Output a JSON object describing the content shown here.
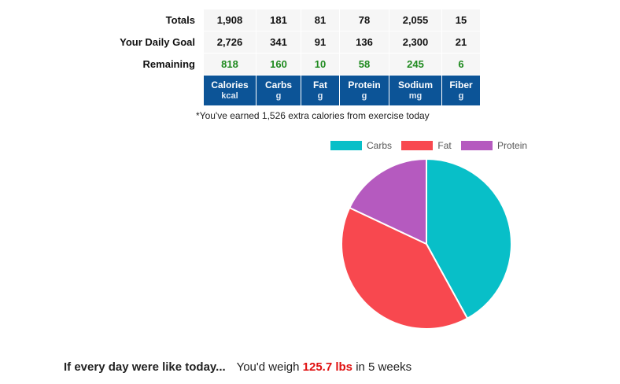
{
  "table": {
    "rows": [
      {
        "label": "Totals",
        "values": [
          "1,908",
          "181",
          "81",
          "78",
          "2,055",
          "15"
        ]
      },
      {
        "label": "Your Daily Goal",
        "values": [
          "2,726",
          "341",
          "91",
          "136",
          "2,300",
          "21"
        ]
      },
      {
        "label": "Remaining",
        "values": [
          "818",
          "160",
          "10",
          "58",
          "245",
          "6"
        ]
      }
    ],
    "headers": [
      {
        "name": "Calories",
        "unit": "kcal"
      },
      {
        "name": "Carbs",
        "unit": "g"
      },
      {
        "name": "Fat",
        "unit": "g"
      },
      {
        "name": "Protein",
        "unit": "g"
      },
      {
        "name": "Sodium",
        "unit": "mg"
      },
      {
        "name": "Fiber",
        "unit": "g"
      }
    ]
  },
  "exercise_note": "*You've earned 1,526 extra calories from exercise today",
  "chart_data": {
    "type": "pie",
    "labels": [
      "Carbs",
      "Fat",
      "Protein"
    ],
    "values": [
      42,
      40,
      18
    ],
    "colors": [
      "#08bfc8",
      "#f8484f",
      "#b55abf"
    ],
    "legend_position": "top"
  },
  "projection": {
    "lead": "If every day were like today...",
    "prefix": "You'd weigh",
    "weight": "125.7 lbs",
    "suffix": "in 5 weeks"
  }
}
